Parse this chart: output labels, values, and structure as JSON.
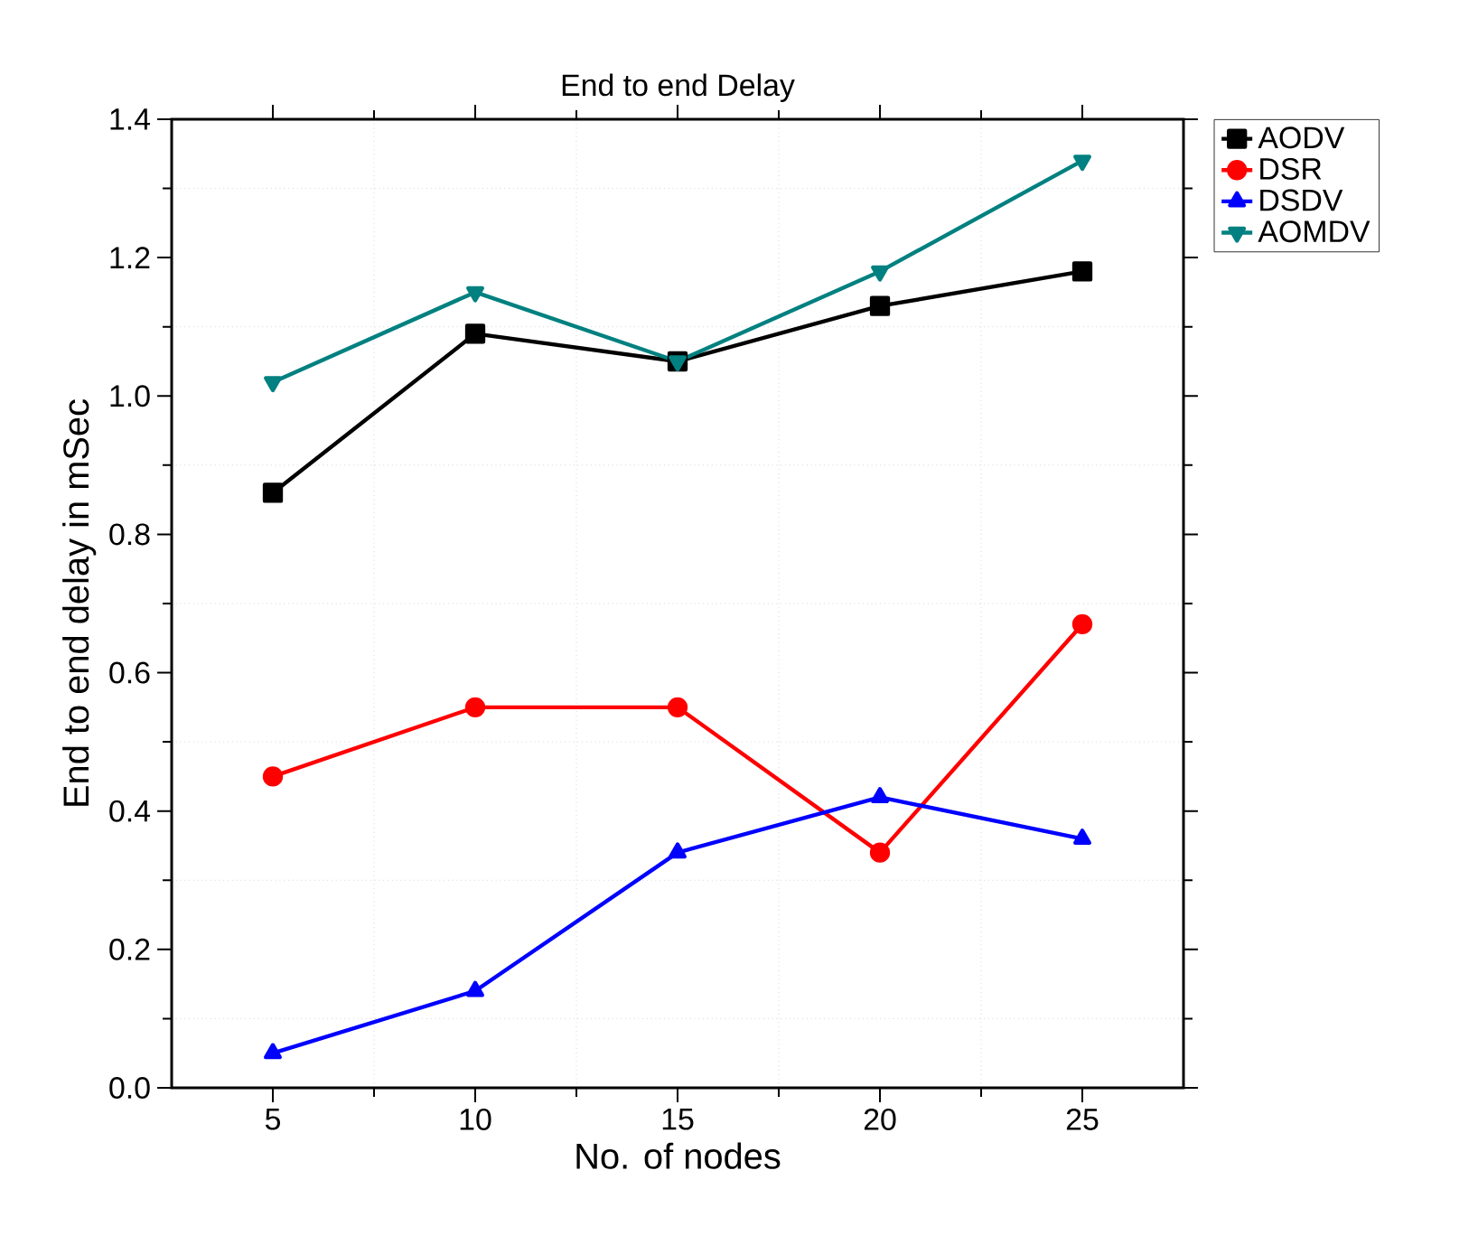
{
  "chart_data": {
    "type": "line",
    "title": "End to end Delay",
    "xlabel": "No. of nodes",
    "ylabel": "End to end delay in mSec",
    "x": [
      5,
      10,
      15,
      20,
      25
    ],
    "series": [
      {
        "name": "AODV",
        "color": "#000000",
        "marker": "square",
        "values": [
          0.86,
          1.09,
          1.05,
          1.13,
          1.18
        ]
      },
      {
        "name": "DSR",
        "color": "#ff0000",
        "marker": "circle",
        "values": [
          0.45,
          0.55,
          0.55,
          0.34,
          0.67
        ]
      },
      {
        "name": "DSDV",
        "color": "#0000ff",
        "marker": "triangle",
        "values": [
          0.05,
          0.14,
          0.34,
          0.42,
          0.36
        ]
      },
      {
        "name": "AOMDV",
        "color": "#008080",
        "marker": "triangle down",
        "values": [
          1.02,
          1.15,
          1.05,
          1.18,
          1.34
        ]
      }
    ],
    "xlim": [
      2.5,
      27.5
    ],
    "xticks": [
      5,
      10,
      15,
      20,
      25
    ],
    "ylim": [
      0,
      1.4
    ],
    "yticks": [
      {
        "value": 0,
        "label": "0.0"
      },
      {
        "value": 0.2,
        "label": "0.2"
      },
      {
        "value": 0.4,
        "label": "0.4"
      },
      {
        "value": 0.6,
        "label": "0.6"
      },
      {
        "value": 0.8,
        "label": "0.8"
      },
      {
        "value": 1.0,
        "label": "1.0"
      },
      {
        "value": 1.2,
        "label": "1.2"
      },
      {
        "value": 1.4,
        "label": "1.4"
      }
    ],
    "grid": true,
    "legend": "right",
    "line_style": "solid"
  }
}
